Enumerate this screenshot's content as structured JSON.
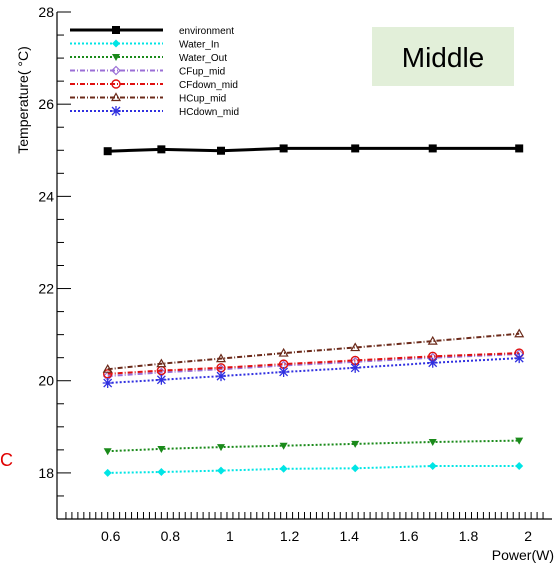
{
  "chart_data": {
    "type": "line",
    "annotation": "Middle",
    "side_mark": "C",
    "ylabel": "Temperature(  °C)",
    "xlabel": "Power(W)",
    "xlim": [
      0.42,
      2.08
    ],
    "ylim": [
      17.0,
      28.0
    ],
    "x_ticks": [
      0.6,
      0.8,
      1,
      1.2,
      1.4,
      1.6,
      1.8,
      2
    ],
    "x_tick_labels": [
      "0.6",
      "0.8",
      "1",
      "1.2",
      "1.4",
      "1.6",
      "1.8",
      "2"
    ],
    "y_ticks": [
      18,
      20,
      22,
      24,
      26,
      28
    ],
    "y_tick_labels": [
      "18",
      "20",
      "22",
      "24",
      "26",
      "28"
    ],
    "x": [
      0.59,
      0.77,
      0.97,
      1.18,
      1.42,
      1.68,
      1.97
    ],
    "series": [
      {
        "name": "environment",
        "color": "#000000",
        "dash": "",
        "width": 3,
        "marker": "square",
        "values": [
          24.98,
          25.02,
          24.99,
          25.04,
          25.04,
          25.04,
          25.04
        ]
      },
      {
        "name": "Water_In",
        "color": "#00e5e5",
        "dash": "2,2",
        "width": 2,
        "marker": "diamond",
        "values": [
          18.0,
          18.02,
          18.05,
          18.09,
          18.1,
          18.15,
          18.15
        ]
      },
      {
        "name": "Water_Out",
        "color": "#1a8a1a",
        "dash": "2,2",
        "width": 2,
        "marker": "triangle-down",
        "values": [
          18.47,
          18.52,
          18.56,
          18.59,
          18.63,
          18.67,
          18.7
        ]
      },
      {
        "name": "CFup_mid",
        "color": "#9b6fd6",
        "dash": "5,2,1,2",
        "width": 2,
        "marker": "diamond-open",
        "values": [
          20.1,
          20.18,
          20.25,
          20.33,
          20.41,
          20.5,
          20.58
        ]
      },
      {
        "name": "CFdown_mid",
        "color": "#e01010",
        "dash": "5,2,1,2",
        "width": 2,
        "marker": "circle-open",
        "values": [
          20.15,
          20.22,
          20.28,
          20.36,
          20.44,
          20.53,
          20.6
        ]
      },
      {
        "name": "HCup_mid",
        "color": "#6b2a1a",
        "dash": "5,2,1,2",
        "width": 2,
        "marker": "triangle-open",
        "values": [
          20.25,
          20.37,
          20.48,
          20.6,
          20.72,
          20.86,
          21.02
        ]
      },
      {
        "name": "HCdown_mid",
        "color": "#3030e0",
        "dash": "2,2",
        "width": 2,
        "marker": "star",
        "values": [
          19.95,
          20.02,
          20.1,
          20.19,
          20.28,
          20.39,
          20.49
        ]
      }
    ]
  }
}
